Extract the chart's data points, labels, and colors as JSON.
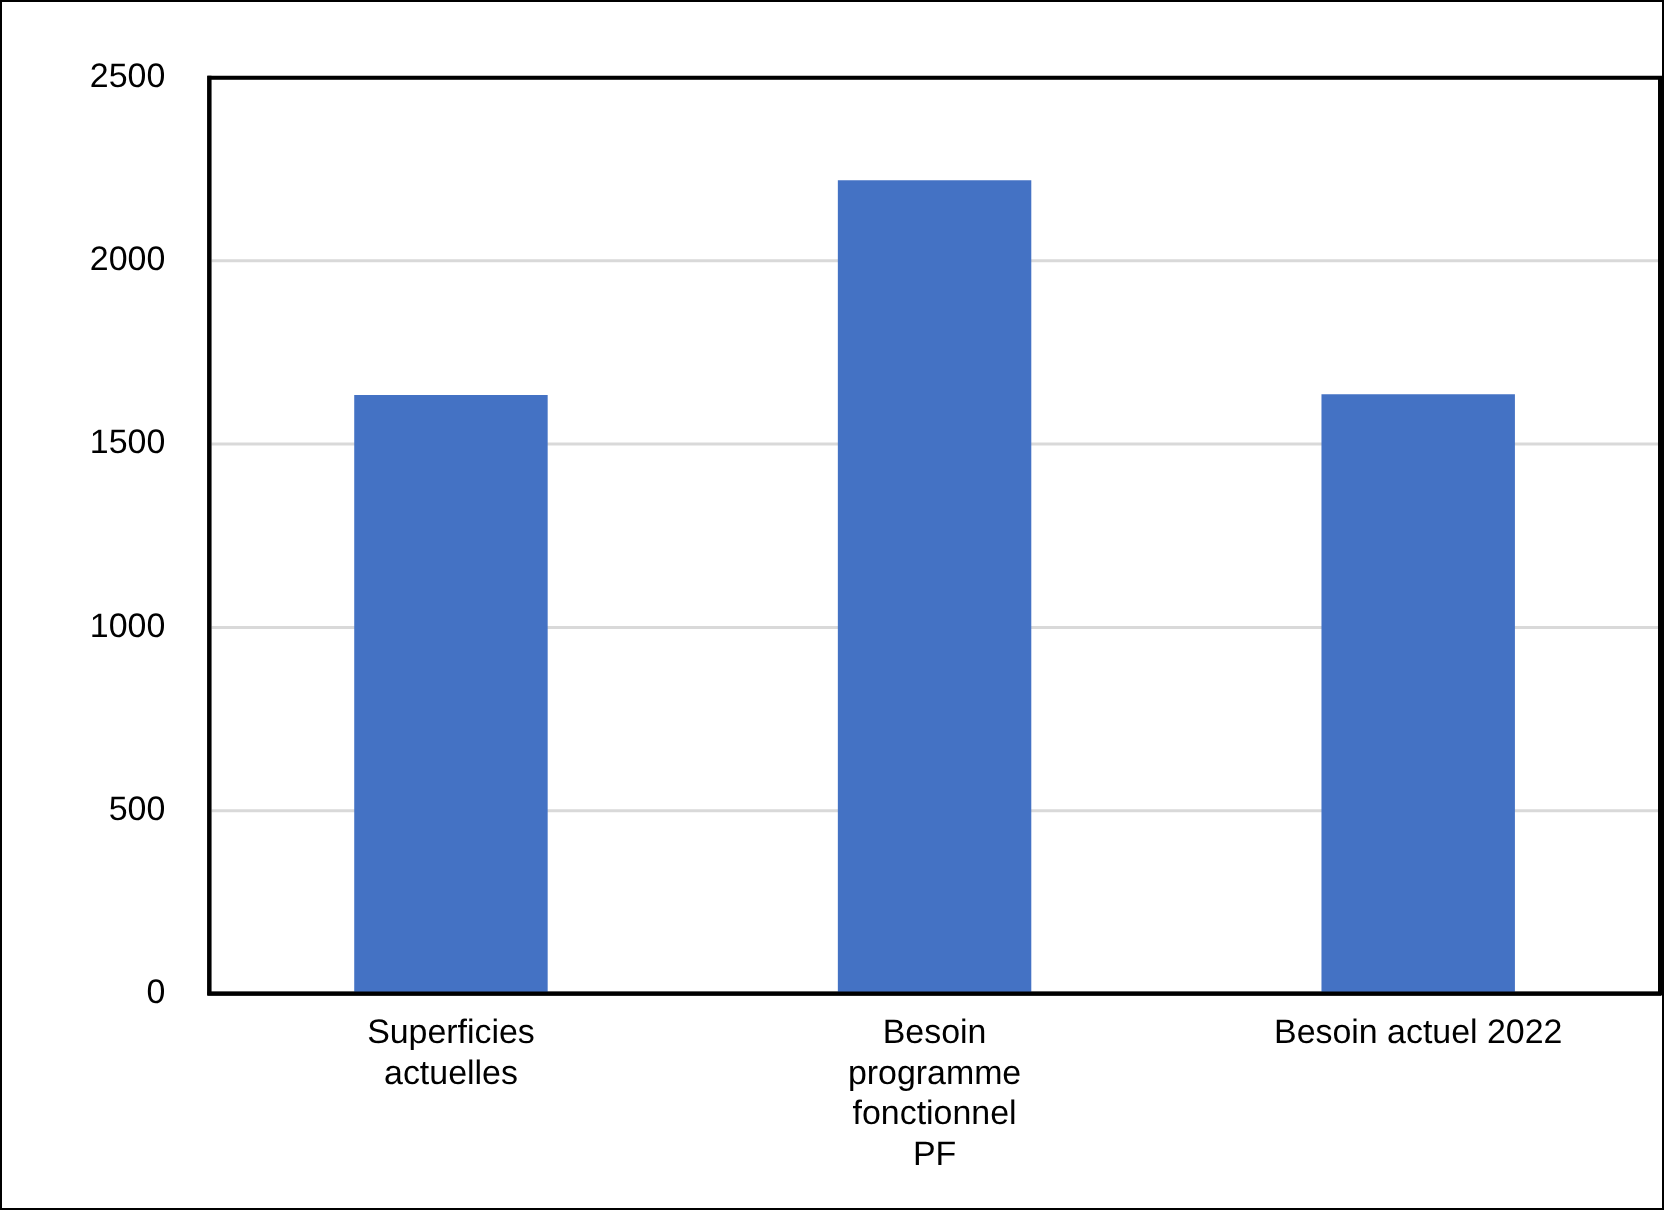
{
  "chart_data": {
    "type": "bar",
    "categories": [
      "Superficies\nactuelles",
      "Besoin\nprogramme\nfonctionnel\nPF",
      "Besoin actuel 2022"
    ],
    "values": [
      1634,
      2220,
      1636
    ],
    "color": "#4472c4",
    "ylim": [
      0,
      2500
    ],
    "yticks": [
      0,
      500,
      1000,
      1500,
      2000,
      2500
    ],
    "grid": "y",
    "legend": false
  }
}
